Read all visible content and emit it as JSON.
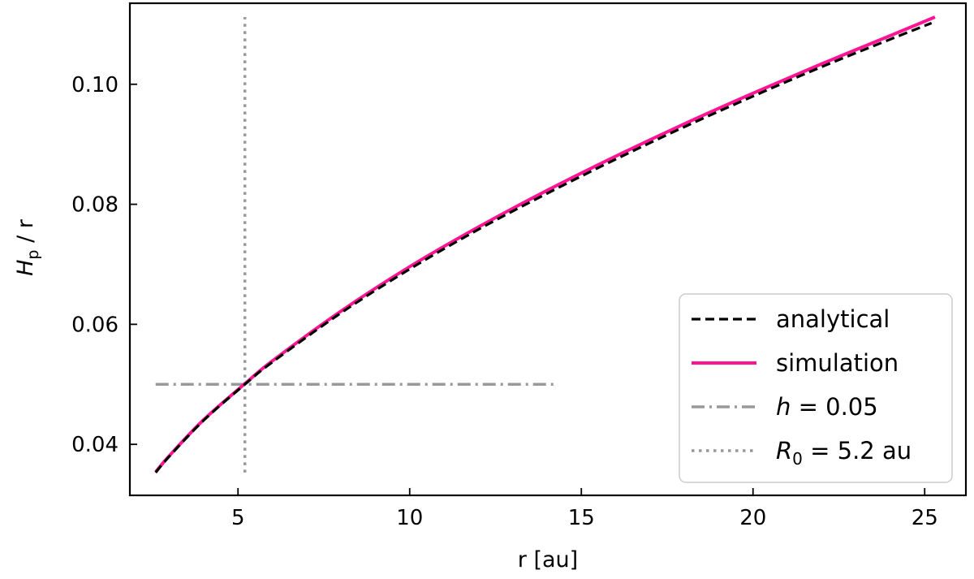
{
  "chart_data": {
    "type": "line",
    "xlabel": "r [au]",
    "ylabel": {
      "main": "H",
      "sub": "p",
      "rest": " / r"
    },
    "xlim": [
      1.85,
      26.2
    ],
    "ylim": [
      0.0315,
      0.1135
    ],
    "x_ticks": [
      5,
      10,
      15,
      20,
      25
    ],
    "x_tick_labels": [
      "5",
      "10",
      "15",
      "20",
      "25"
    ],
    "y_ticks": [
      0.04,
      0.06,
      0.08,
      0.1
    ],
    "y_tick_labels": [
      "0.04",
      "0.06",
      "0.08",
      "0.10"
    ],
    "grid": false,
    "legend_position": "lower right",
    "colors": {
      "analytical": "#000000",
      "simulation": "#ff1493",
      "h_line": "#999999",
      "r0_line": "#999999"
    },
    "series": [
      {
        "name": "analytical",
        "style": "dashed",
        "x": [
          2.6,
          3.0,
          4.0,
          5.2,
          6.0,
          8.0,
          10.0,
          12.0,
          14.0,
          16.0,
          18.0,
          20.0,
          22.0,
          24.0,
          25.2
        ],
        "y": [
          0.0353,
          0.038,
          0.044,
          0.05,
          0.0537,
          0.0619,
          0.0692,
          0.0758,
          0.0818,
          0.0875,
          0.0929,
          0.098,
          0.1029,
          0.1075,
          0.1102
        ]
      },
      {
        "name": "simulation",
        "style": "solid",
        "x": [
          2.6,
          3.0,
          4.0,
          5.2,
          6.0,
          8.0,
          10.0,
          12.0,
          14.0,
          16.0,
          18.0,
          20.0,
          22.0,
          24.0,
          25.3
        ],
        "y": [
          0.0354,
          0.0381,
          0.0441,
          0.0501,
          0.0539,
          0.0622,
          0.0696,
          0.0762,
          0.0823,
          0.088,
          0.0934,
          0.0985,
          0.1034,
          0.1081,
          0.1112
        ]
      },
      {
        "name": "h = 0.05",
        "name_parts": {
          "var": "h",
          "rest": " = 0.05"
        },
        "style": "dashdot",
        "x": [
          2.6,
          14.3
        ],
        "y": [
          0.05,
          0.05
        ]
      },
      {
        "name": "R0 = 5.2 au",
        "name_parts": {
          "var": "R",
          "sub": "0",
          "rest": " = 5.2 au"
        },
        "style": "dotted",
        "x": [
          5.2,
          5.2
        ],
        "y": [
          0.0353,
          0.1112
        ]
      }
    ],
    "legend": [
      {
        "key": "analytical",
        "label": "analytical"
      },
      {
        "key": "simulation",
        "label": "simulation"
      },
      {
        "key": "h_line",
        "label": "h = 0.05"
      },
      {
        "key": "r0_line",
        "label": "R0 = 5.2 au"
      }
    ]
  }
}
